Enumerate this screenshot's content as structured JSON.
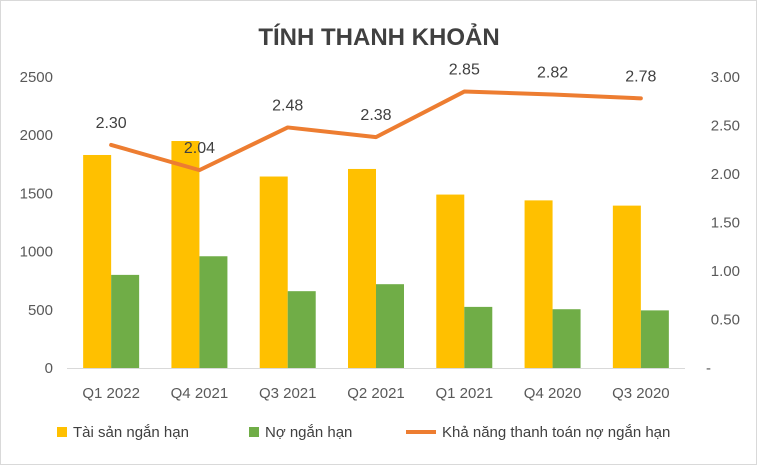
{
  "chart_data": {
    "type": "bar",
    "title": "TÍNH THANH KHOẢN",
    "categories": [
      "Q1 2022",
      "Q4 2021",
      "Q3 2021",
      "Q2 2021",
      "Q1 2021",
      "Q4 2020",
      "Q3 2020"
    ],
    "series": [
      {
        "name": "Tài sản ngắn hạn",
        "type": "bar",
        "axis": "left",
        "color": "#FFC000",
        "values": [
          1830,
          1950,
          1645,
          1710,
          1490,
          1440,
          1395
        ]
      },
      {
        "name": "Nợ ngắn hạn",
        "type": "bar",
        "axis": "left",
        "color": "#70AD47",
        "values": [
          800,
          960,
          660,
          720,
          525,
          505,
          495
        ]
      },
      {
        "name": "Khả năng thanh toán nợ ngắn hạn",
        "type": "line",
        "axis": "right",
        "color": "#ED7D31",
        "values": [
          2.3,
          2.04,
          2.48,
          2.38,
          2.85,
          2.82,
          2.78
        ],
        "labels": [
          "2.30",
          "2.04",
          "2.48",
          "2.38",
          "2.85",
          "2.82",
          "2.78"
        ]
      }
    ],
    "y_left": {
      "min": 0,
      "max": 2500,
      "ticks": [
        "0",
        "500",
        "1000",
        "1500",
        "2000",
        "2500"
      ]
    },
    "y_right": {
      "min": 0,
      "max": 3.0,
      "ticks": [
        "-",
        "0.50",
        "1.00",
        "1.50",
        "2.00",
        "2.50",
        "3.00"
      ]
    },
    "grid": false,
    "legend": "bottom"
  }
}
